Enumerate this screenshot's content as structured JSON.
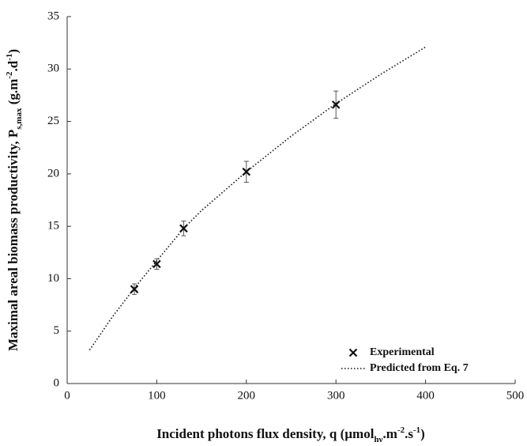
{
  "chart_data": {
    "type": "scatter",
    "xlabel_parts": [
      {
        "text": "Incident photons flux density, q (µmol"
      },
      {
        "text": "hν",
        "shift": "sub"
      },
      {
        "text": ".m"
      },
      {
        "text": "-2",
        "shift": "super"
      },
      {
        "text": ".s"
      },
      {
        "text": "-1",
        "shift": "super"
      },
      {
        "text": ")"
      }
    ],
    "ylabel_parts": [
      {
        "text": "Maximal areal biomass productivity, P"
      },
      {
        "text": "s,max",
        "shift": "sub"
      },
      {
        "text": " (g.m"
      },
      {
        "text": "-2",
        "shift": "super"
      },
      {
        "text": ".d"
      },
      {
        "text": "-1",
        "shift": "super"
      },
      {
        "text": ")"
      }
    ],
    "xlim": [
      0,
      500
    ],
    "xticks": [
      0,
      100,
      200,
      300,
      400,
      500
    ],
    "ylim": [
      0,
      35
    ],
    "yticks": [
      0,
      5,
      10,
      15,
      20,
      25,
      30,
      35
    ],
    "grid": false,
    "legend": "lower right",
    "series": [
      {
        "name": "Experimental",
        "type": "scatter",
        "color": "#111111",
        "x": [
          75,
          100,
          130,
          200,
          300
        ],
        "values": [
          9.0,
          11.4,
          14.8,
          20.2,
          26.6
        ],
        "errors": [
          0.5,
          0.5,
          0.7,
          1.0,
          1.3
        ]
      },
      {
        "name": "Predicted from Eq. 7",
        "type": "line",
        "color": "#111111",
        "dash": "dotted",
        "x": [
          25,
          50,
          75,
          100,
          130,
          150,
          200,
          250,
          300,
          350,
          400
        ],
        "values": [
          3.2,
          6.3,
          9.1,
          11.7,
          14.8,
          16.5,
          20.2,
          23.6,
          26.7,
          29.5,
          32.1
        ]
      }
    ]
  }
}
